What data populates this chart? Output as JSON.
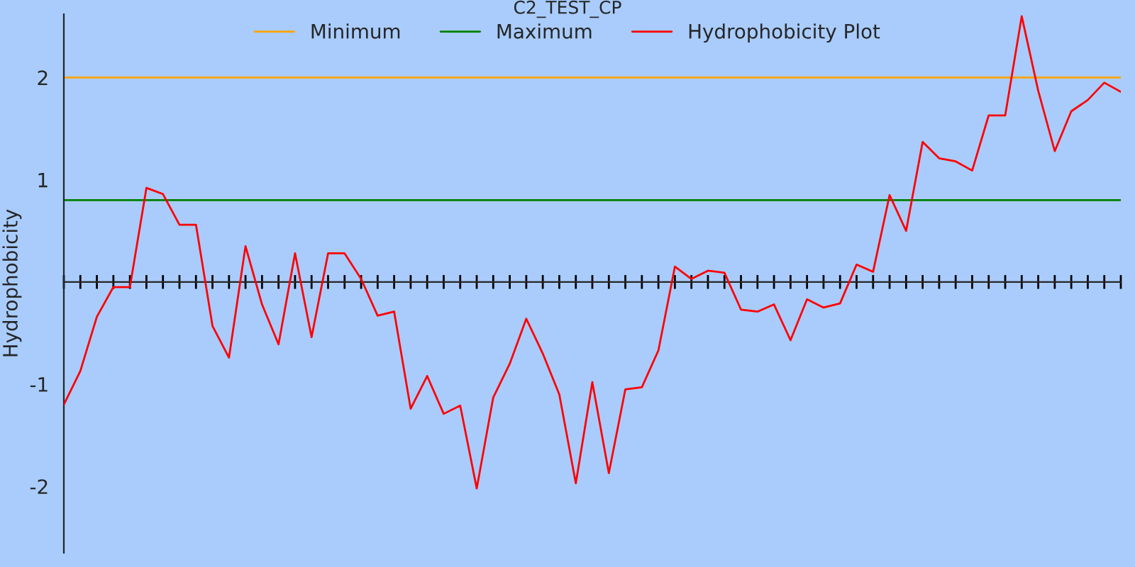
{
  "chart_data": {
    "type": "line",
    "title": "C2_TEST_CP",
    "ylabel": "Hydrophobicity",
    "categories": [
      null,
      null,
      null,
      null,
      null,
      null,
      null,
      null,
      null,
      null,
      null,
      null,
      null,
      null,
      null,
      null,
      null,
      null,
      null,
      null,
      null,
      null,
      null,
      null,
      null,
      null,
      null,
      null,
      null,
      null,
      null,
      null,
      null,
      null,
      null,
      null,
      null,
      null,
      null,
      null,
      null,
      null,
      null,
      null,
      null,
      null,
      null,
      null,
      null,
      null,
      null,
      null,
      null,
      null,
      null,
      null,
      null,
      null,
      null,
      null,
      null,
      null,
      null,
      null,
      null
    ],
    "series": [
      {
        "name": "Hydrophobicity Plot",
        "color": "#ff0000",
        "values": [
          -1.2,
          -0.87,
          -0.34,
          -0.05,
          -0.05,
          0.92,
          0.86,
          0.56,
          0.56,
          -0.43,
          -0.74,
          0.35,
          -0.22,
          -0.61,
          0.28,
          -0.54,
          0.28,
          0.28,
          0.03,
          -0.33,
          -0.29,
          -1.24,
          -0.92,
          -1.29,
          -1.21,
          -2.02,
          -1.13,
          -0.8,
          -0.36,
          -0.7,
          -1.1,
          -1.97,
          -0.98,
          -1.87,
          -1.05,
          -1.03,
          -0.67,
          0.15,
          0.03,
          0.11,
          0.09,
          -0.27,
          -0.29,
          -0.22,
          -0.57,
          -0.17,
          -0.25,
          -0.21,
          0.17,
          0.1,
          0.85,
          0.5,
          1.37,
          1.21,
          1.18,
          1.09,
          1.63,
          1.63,
          2.6,
          1.87,
          1.28,
          1.67,
          1.78,
          1.95,
          1.86
        ]
      }
    ],
    "ref_lines": [
      {
        "axis": "y",
        "value": 2,
        "label": "Minimum",
        "color": "#ffa500"
      },
      {
        "axis": "y",
        "value": 0.8,
        "label": "Maximum",
        "color": "#008000"
      }
    ],
    "ylim": [
      -2.65,
      2.62
    ],
    "yticks": [
      -2,
      -1,
      1,
      2
    ],
    "grid": false,
    "legend": "top",
    "marker": "none",
    "line_style": "solid"
  }
}
